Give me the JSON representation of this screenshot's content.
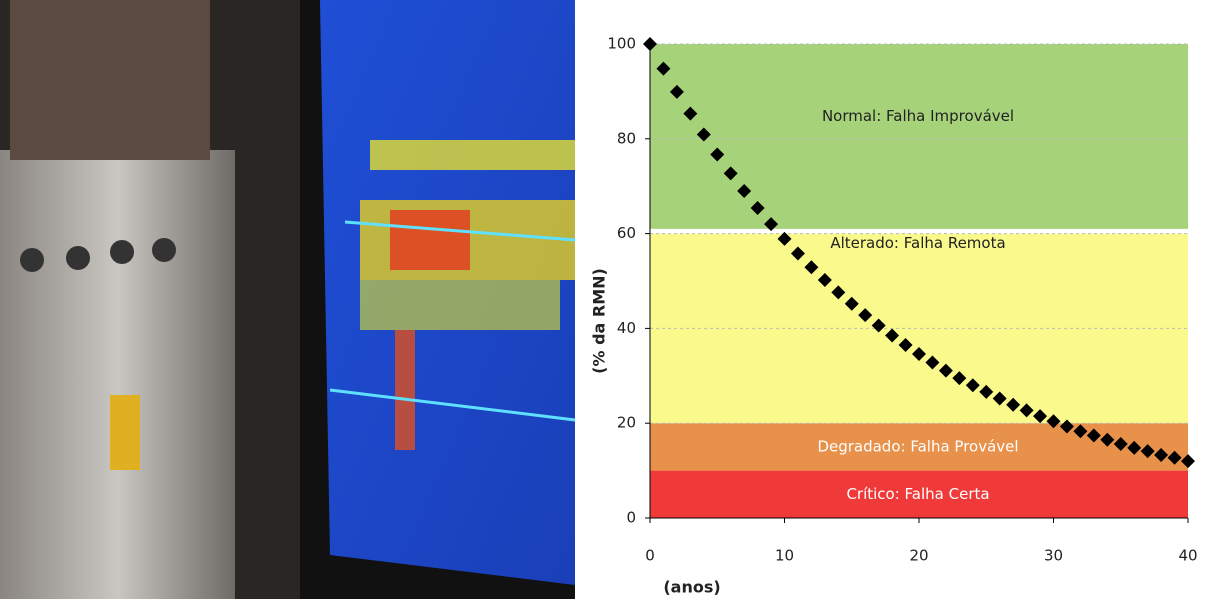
{
  "chart_data": {
    "type": "scatter",
    "x_label": "(anos)",
    "y_label": "(% da RMN)",
    "xlim": [
      0,
      40
    ],
    "ylim": [
      0,
      100
    ],
    "xticks": [
      0,
      10,
      20,
      30,
      40
    ],
    "yticks": [
      0,
      20,
      40,
      60,
      80,
      100
    ],
    "grid": true,
    "bands": [
      {
        "from": 0,
        "to": 10,
        "color": "#f03a3a",
        "label_color": "#ffffff",
        "label": "Crítico: Falha Certa"
      },
      {
        "from": 10,
        "to": 20,
        "color": "#e8914a",
        "label_color": "#ffffff",
        "label": "Degradado: Falha Provável"
      },
      {
        "from": 20,
        "to": 60,
        "color": "#fafa8c",
        "label_color": "#222222",
        "label": "Alterado: Falha Remota"
      },
      {
        "from": 61,
        "to": 100,
        "color": "#a6d27a",
        "label_color": "#222222",
        "label": "Normal: Falha Improvável"
      }
    ],
    "series": [
      {
        "color": "#000000",
        "x": [
          0,
          1,
          2,
          3,
          4,
          5,
          6,
          7,
          8,
          9,
          10,
          11,
          12,
          13,
          14,
          15,
          16,
          17,
          18,
          19,
          20,
          21,
          22,
          23,
          24,
          25,
          26,
          27,
          28,
          29,
          30,
          31,
          32,
          33,
          34,
          35,
          36,
          37,
          38,
          39,
          40
        ],
        "values": [
          100,
          94.8,
          89.9,
          85.3,
          80.9,
          76.7,
          72.7,
          69.0,
          65.4,
          62.0,
          58.9,
          55.8,
          52.9,
          50.2,
          47.6,
          45.2,
          42.8,
          40.6,
          38.5,
          36.5,
          34.6,
          32.8,
          31.1,
          29.5,
          28.0,
          26.6,
          25.2,
          23.9,
          22.7,
          21.5,
          20.4,
          19.3,
          18.3,
          17.4,
          16.5,
          15.6,
          14.8,
          14.1,
          13.3,
          12.7,
          12.0
        ]
      }
    ]
  }
}
